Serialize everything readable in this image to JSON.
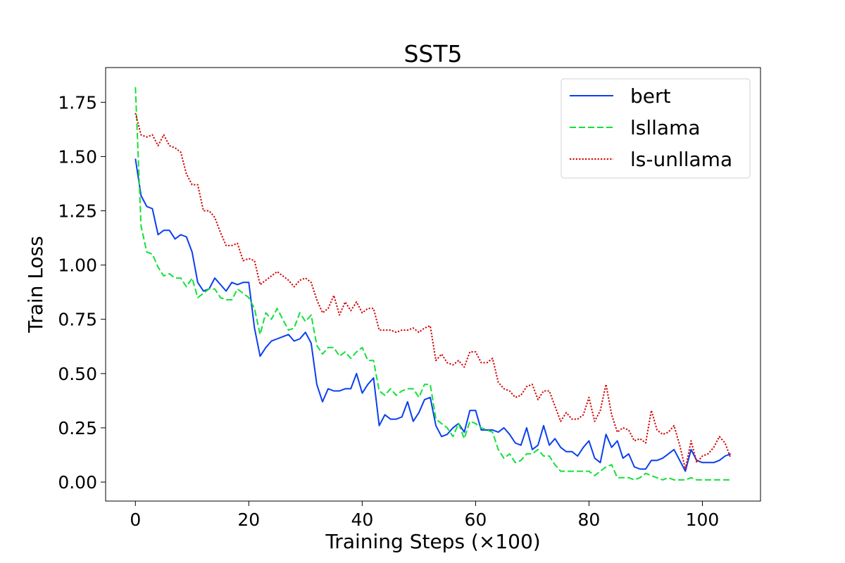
{
  "chart_data": {
    "type": "line",
    "title": "SST5",
    "xlabel": "Training Steps (×100)",
    "ylabel": "Train Loss",
    "xlim": [
      -5.25,
      110.25
    ],
    "ylim": [
      -0.0875,
      1.91
    ],
    "x_ticks": [
      0,
      20,
      40,
      60,
      80,
      100
    ],
    "y_ticks": [
      0.0,
      0.25,
      0.5,
      0.75,
      1.0,
      1.25,
      1.5,
      1.75
    ],
    "x_tick_labels": [
      "0",
      "20",
      "40",
      "60",
      "80",
      "100"
    ],
    "y_tick_labels": [
      "0.00",
      "0.25",
      "0.50",
      "0.75",
      "1.00",
      "1.25",
      "1.50",
      "1.75"
    ],
    "grid": false,
    "legend_position": "top-right",
    "x": [
      0,
      1,
      2,
      3,
      4,
      5,
      6,
      7,
      8,
      9,
      10,
      11,
      12,
      13,
      14,
      15,
      16,
      17,
      18,
      19,
      20,
      21,
      22,
      23,
      24,
      25,
      26,
      27,
      28,
      29,
      30,
      31,
      32,
      33,
      34,
      35,
      36,
      37,
      38,
      39,
      40,
      41,
      42,
      43,
      44,
      45,
      46,
      47,
      48,
      49,
      50,
      51,
      52,
      53,
      54,
      55,
      56,
      57,
      58,
      59,
      60,
      61,
      62,
      63,
      64,
      65,
      66,
      67,
      68,
      69,
      70,
      71,
      72,
      73,
      74,
      75,
      76,
      77,
      78,
      79,
      80,
      81,
      82,
      83,
      84,
      85,
      86,
      87,
      88,
      89,
      90,
      91,
      92,
      93,
      94,
      95,
      96,
      97,
      98,
      99,
      100,
      101,
      102,
      103,
      104,
      105
    ],
    "series": [
      {
        "name": "bert",
        "color": "#0a3ff0",
        "style": "solid",
        "values": [
          1.49,
          1.32,
          1.27,
          1.26,
          1.14,
          1.16,
          1.16,
          1.12,
          1.14,
          1.13,
          1.06,
          0.92,
          0.88,
          0.89,
          0.94,
          0.91,
          0.88,
          0.92,
          0.91,
          0.92,
          0.92,
          0.71,
          0.58,
          0.62,
          0.65,
          0.66,
          0.67,
          0.68,
          0.65,
          0.66,
          0.69,
          0.64,
          0.45,
          0.37,
          0.43,
          0.42,
          0.42,
          0.43,
          0.43,
          0.5,
          0.41,
          0.45,
          0.48,
          0.26,
          0.31,
          0.29,
          0.29,
          0.3,
          0.37,
          0.28,
          0.32,
          0.38,
          0.39,
          0.26,
          0.21,
          0.22,
          0.25,
          0.27,
          0.23,
          0.33,
          0.33,
          0.24,
          0.24,
          0.24,
          0.23,
          0.25,
          0.22,
          0.18,
          0.17,
          0.25,
          0.15,
          0.17,
          0.26,
          0.17,
          0.2,
          0.16,
          0.14,
          0.14,
          0.12,
          0.16,
          0.19,
          0.11,
          0.09,
          0.22,
          0.16,
          0.19,
          0.11,
          0.13,
          0.07,
          0.06,
          0.06,
          0.1,
          0.1,
          0.11,
          0.13,
          0.15,
          0.1,
          0.05,
          0.15,
          0.1,
          0.09,
          0.09,
          0.09,
          0.1,
          0.12,
          0.13
        ]
      },
      {
        "name": "lsllama",
        "color": "#12e03a",
        "style": "dashed",
        "values": [
          1.82,
          1.18,
          1.06,
          1.05,
          0.99,
          0.95,
          0.96,
          0.94,
          0.94,
          0.9,
          0.94,
          0.85,
          0.87,
          0.89,
          0.89,
          0.85,
          0.84,
          0.84,
          0.89,
          0.87,
          0.85,
          0.8,
          0.68,
          0.78,
          0.75,
          0.8,
          0.75,
          0.7,
          0.71,
          0.78,
          0.74,
          0.77,
          0.63,
          0.59,
          0.62,
          0.62,
          0.58,
          0.6,
          0.57,
          0.6,
          0.62,
          0.56,
          0.56,
          0.42,
          0.4,
          0.43,
          0.4,
          0.42,
          0.43,
          0.43,
          0.39,
          0.45,
          0.45,
          0.29,
          0.27,
          0.25,
          0.21,
          0.27,
          0.2,
          0.28,
          0.27,
          0.25,
          0.24,
          0.23,
          0.15,
          0.11,
          0.13,
          0.09,
          0.1,
          0.13,
          0.13,
          0.15,
          0.12,
          0.12,
          0.08,
          0.05,
          0.05,
          0.05,
          0.05,
          0.05,
          0.05,
          0.03,
          0.05,
          0.07,
          0.08,
          0.02,
          0.02,
          0.02,
          0.01,
          0.02,
          0.04,
          0.03,
          0.02,
          0.01,
          0.02,
          0.01,
          0.01,
          0.01,
          0.02,
          0.01,
          0.01,
          0.01,
          0.01,
          0.01,
          0.01,
          0.01
        ]
      },
      {
        "name": "ls-unllama",
        "color": "#d60000",
        "style": "dotted",
        "values": [
          1.7,
          1.6,
          1.59,
          1.6,
          1.55,
          1.6,
          1.55,
          1.54,
          1.52,
          1.42,
          1.37,
          1.37,
          1.25,
          1.25,
          1.22,
          1.15,
          1.09,
          1.09,
          1.1,
          1.02,
          1.03,
          1.02,
          0.91,
          0.93,
          0.95,
          0.97,
          0.95,
          0.93,
          0.9,
          0.93,
          0.94,
          0.92,
          0.84,
          0.78,
          0.8,
          0.86,
          0.77,
          0.83,
          0.79,
          0.83,
          0.78,
          0.8,
          0.8,
          0.7,
          0.7,
          0.7,
          0.69,
          0.7,
          0.7,
          0.71,
          0.69,
          0.71,
          0.72,
          0.56,
          0.59,
          0.55,
          0.54,
          0.56,
          0.53,
          0.6,
          0.6,
          0.55,
          0.55,
          0.57,
          0.46,
          0.43,
          0.42,
          0.39,
          0.4,
          0.44,
          0.45,
          0.38,
          0.42,
          0.42,
          0.35,
          0.28,
          0.32,
          0.29,
          0.29,
          0.31,
          0.39,
          0.28,
          0.33,
          0.45,
          0.31,
          0.23,
          0.25,
          0.24,
          0.19,
          0.2,
          0.18,
          0.33,
          0.24,
          0.22,
          0.23,
          0.26,
          0.17,
          0.06,
          0.19,
          0.09,
          0.12,
          0.13,
          0.16,
          0.21,
          0.18,
          0.11
        ]
      }
    ]
  }
}
